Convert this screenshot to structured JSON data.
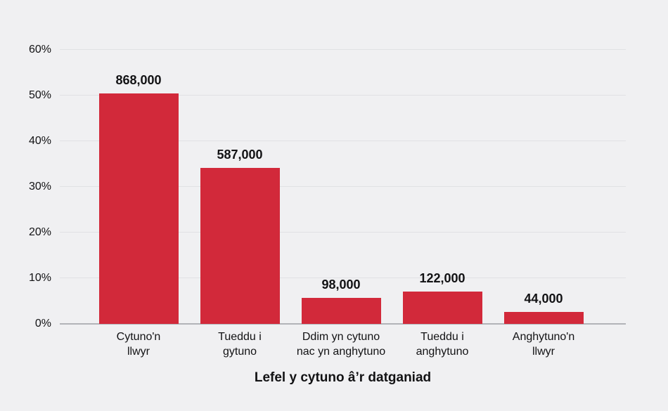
{
  "page": {
    "background_color": "#f0f0f2"
  },
  "chart_data": {
    "type": "bar",
    "title": "",
    "xlabel": "Lefel y cytuno â’r datganiad",
    "ylabel": "",
    "categories": [
      [
        "Cytuno'n",
        "llwyr"
      ],
      [
        "Tueddu i",
        "gytuno"
      ],
      [
        "Ddim yn cytuno",
        "nac yn anghytuno"
      ],
      [
        "Tueddu i",
        "anghytuno"
      ],
      [
        "Anghytuno'n",
        "llwyr"
      ]
    ],
    "values": [
      868000,
      587000,
      98000,
      122000,
      44000
    ],
    "value_labels": [
      "868,000",
      "587,000",
      "98,000",
      "122,000",
      "44,000"
    ],
    "percents": [
      50.5,
      34.1,
      5.7,
      7.1,
      2.6
    ],
    "y_ticks": [
      "0%",
      "10%",
      "20%",
      "30%",
      "40%",
      "50%",
      "60%"
    ],
    "y_tick_values": [
      0,
      10,
      20,
      30,
      40,
      50,
      60
    ],
    "ylim": [
      0,
      60
    ],
    "grid": true,
    "legend": "none",
    "bar_color": "#d2293a",
    "gridline_color": "#e0e1e4",
    "axis_line_color": "#b2b3b8",
    "text_color": "#121214"
  }
}
